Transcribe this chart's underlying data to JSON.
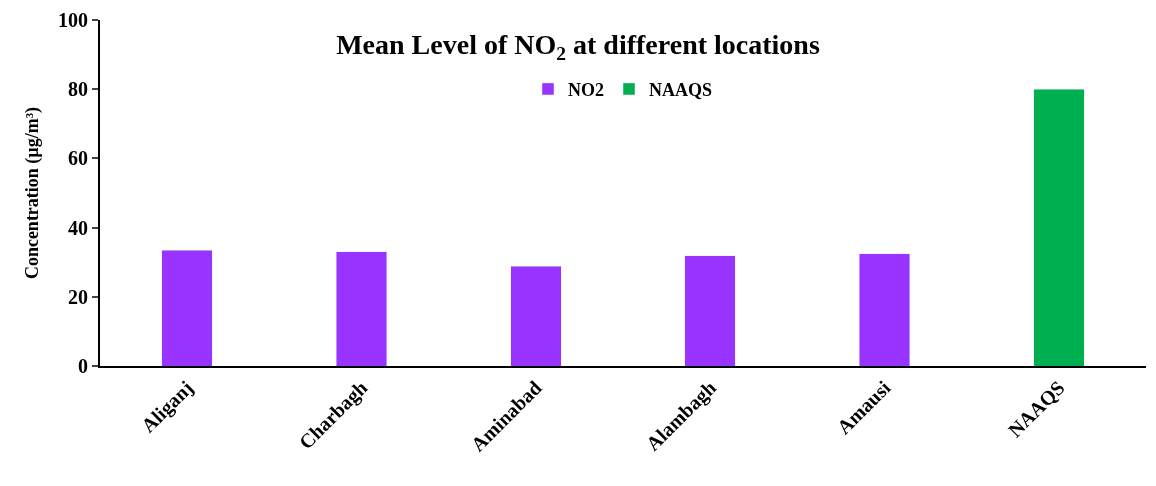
{
  "chart_data": {
    "type": "bar",
    "title": "Mean Level of NO$_{2}$ at different locations",
    "ylabel": "Concentration (µg/m³)",
    "categories": [
      "Aliganj",
      "Charbagh",
      "Aminabad",
      "Alambagh",
      "Amausi",
      "NAAQS"
    ],
    "series": [
      {
        "name": "NO2",
        "color": "#9933ff",
        "values": [
          33.5,
          33.0,
          28.8,
          31.8,
          32.5,
          null
        ]
      },
      {
        "name": "NAAQS",
        "color": "#00b050",
        "values": [
          null,
          null,
          null,
          null,
          null,
          80
        ]
      }
    ],
    "stacked": true,
    "ylim": [
      0,
      100
    ],
    "yticks": [
      0,
      20,
      40,
      60,
      80,
      100
    ],
    "legend": "top"
  }
}
